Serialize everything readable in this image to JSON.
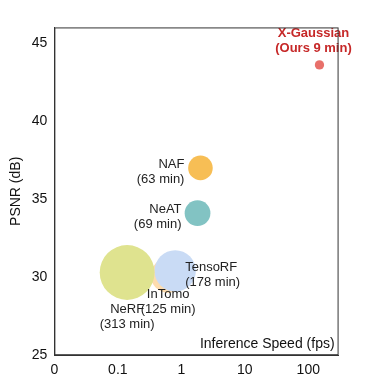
{
  "chart_data": {
    "type": "bubble",
    "x_label": "Inference Speed (fps)",
    "y_label": "PSNR (dB)",
    "log": "x",
    "grid": false,
    "tick_labels": true,
    "xlim": [
      0.01,
      300
    ],
    "xticks": [
      {
        "value": 0.01,
        "label": "0"
      },
      0.1,
      1,
      10,
      100
    ],
    "ylim": [
      25,
      46
    ],
    "yticks": [
      25,
      30,
      35,
      40,
      45
    ],
    "points": [
      {
        "label": [
          "NeRF",
          "(313 min)"
        ],
        "x": 0.14,
        "y": 30.3,
        "minutes": 313,
        "color": "#dfe38f"
      },
      {
        "label": [
          "TensoRF",
          "(178 min)"
        ],
        "x": 0.8,
        "y": 30.4,
        "minutes": 178,
        "color": "#c9dbf5"
      },
      {
        "label": [
          "InTomo",
          "(125 min)"
        ],
        "x": 0.62,
        "y": 30.1,
        "minutes": 125,
        "color": "#fddcae"
      },
      {
        "label": [
          "NeAT",
          "(69 min)"
        ],
        "x": 1.8,
        "y": 34.1,
        "minutes": 69,
        "color": "#82c3c3"
      },
      {
        "label": [
          "NAF",
          "(63 min)"
        ],
        "x": 2.0,
        "y": 37.0,
        "minutes": 63,
        "color": "#f7be55"
      },
      {
        "label": [
          "X-Gaussian",
          "(Ours 9 min)"
        ],
        "x": 150,
        "y": 43.6,
        "minutes": 9,
        "color": "#e8706a",
        "label_color": "#c62828"
      }
    ]
  }
}
